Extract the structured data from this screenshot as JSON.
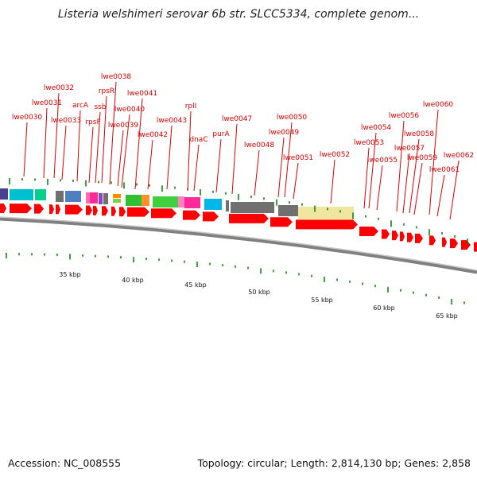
{
  "title": "Listeria welshimeri serovar 6b str. SLCC5334, complete genom...",
  "footer": {
    "accession": "Accession: NC_008555",
    "summary": "Topology: circular; Length: 2,814,130 bp; Genes: 2,858"
  },
  "colors": {
    "label": "#dd0000",
    "cds": "#ff0000",
    "backbone": "#808080",
    "tick": "#008000"
  },
  "scale_labels": [
    "35 kbp",
    "40 kbp",
    "45 kbp",
    "50 kbp",
    "55 kbp",
    "60 kbp",
    "65 kbp"
  ],
  "gene_labels": [
    {
      "text": "lwe0030"
    },
    {
      "text": "lwe0031"
    },
    {
      "text": "lwe0032"
    },
    {
      "text": "lwe0033"
    },
    {
      "text": "arcA"
    },
    {
      "text": "ssb"
    },
    {
      "text": "rpsF"
    },
    {
      "text": "rpsR"
    },
    {
      "text": "lwe0038"
    },
    {
      "text": "lwe0039"
    },
    {
      "text": "lwe0040"
    },
    {
      "text": "lwe0041"
    },
    {
      "text": "lwe0042"
    },
    {
      "text": "lwe0043"
    },
    {
      "text": "rplI"
    },
    {
      "text": "dnaC"
    },
    {
      "text": "purA"
    },
    {
      "text": "lwe0047"
    },
    {
      "text": "lwe0048"
    },
    {
      "text": "lwe0049"
    },
    {
      "text": "lwe0050"
    },
    {
      "text": "lwe0051"
    },
    {
      "text": "lwe0052"
    },
    {
      "text": "lwe0053"
    },
    {
      "text": "lwe0054"
    },
    {
      "text": "lwe0055"
    },
    {
      "text": "lwe0056"
    },
    {
      "text": "lwe0057"
    },
    {
      "text": "lwe0058"
    },
    {
      "text": "lwe0059"
    },
    {
      "text": "lwe0060"
    },
    {
      "text": "lwe0061"
    },
    {
      "text": "lwe0062"
    }
  ]
}
